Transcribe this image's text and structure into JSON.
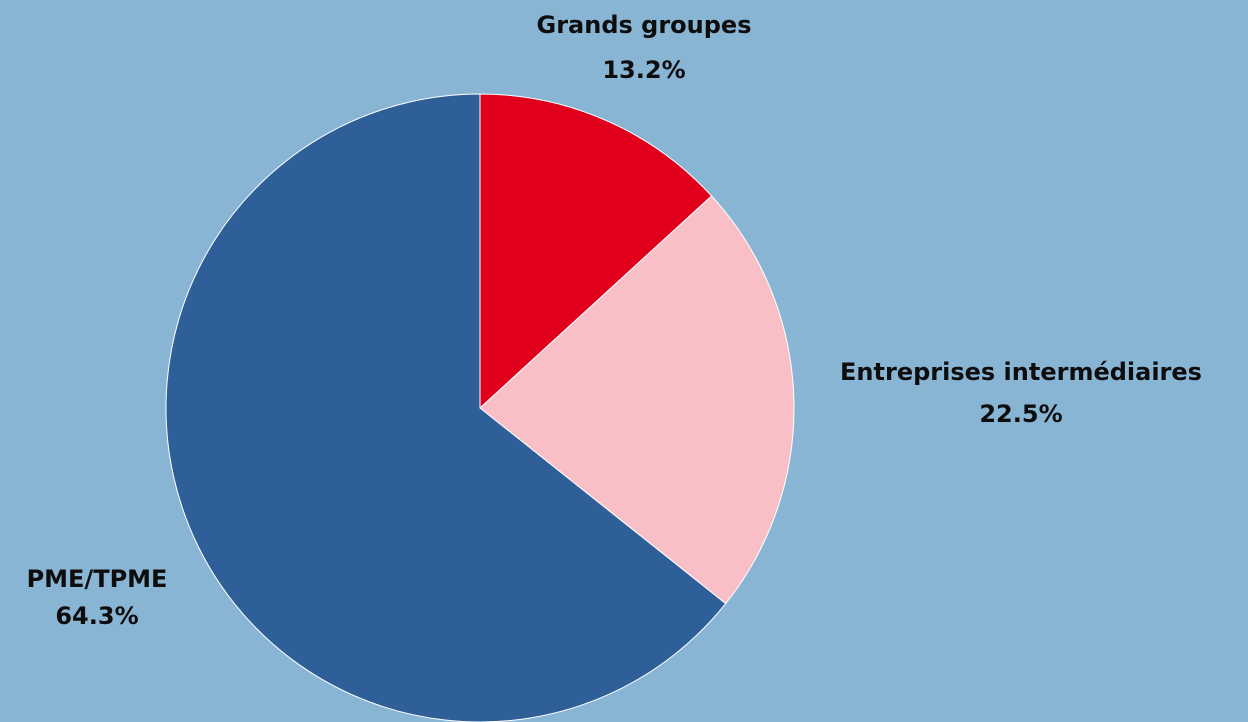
{
  "chart_data": {
    "type": "pie",
    "title": "",
    "unit": "%",
    "start_angle_deg": 0,
    "direction": "clockwise",
    "slices": [
      {
        "name": "Grands groupes",
        "value": 13.2,
        "value_label": "13.2%",
        "color": "#e0001b"
      },
      {
        "name": "Entreprises intermédiaires",
        "value": 22.5,
        "value_label": "22.5%",
        "color": "#f8c0c6"
      },
      {
        "name": "PME/TPME",
        "value": 64.3,
        "value_label": "64.3%",
        "color": "#2f5f98"
      }
    ],
    "background_color": "#89b5d5"
  }
}
